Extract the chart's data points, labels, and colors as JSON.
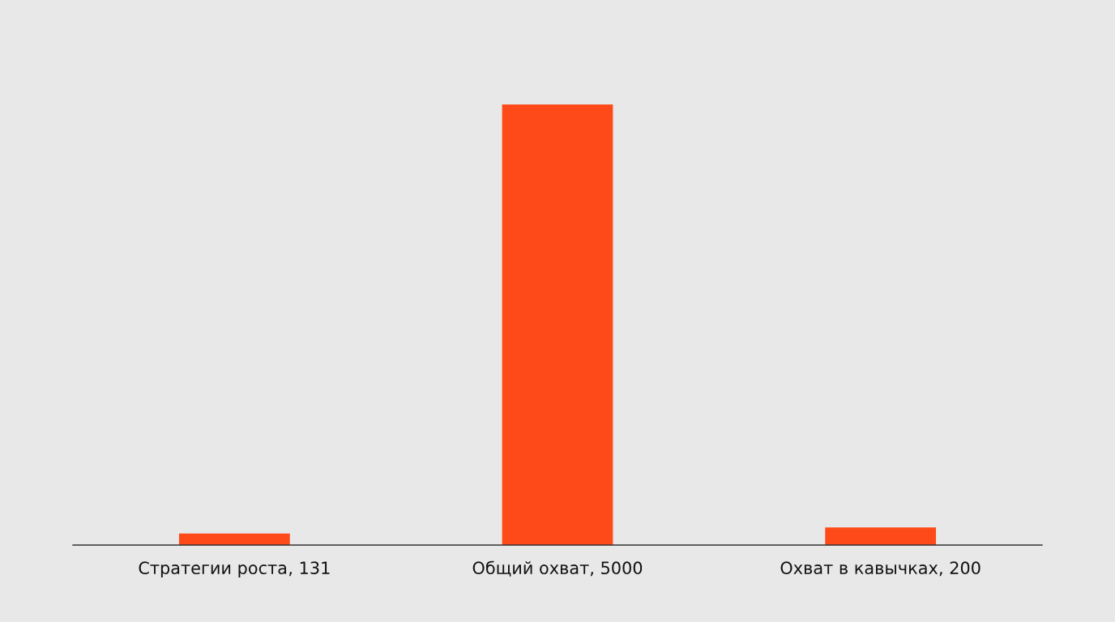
{
  "chart_data": {
    "type": "bar",
    "categories": [
      "Стратегии роста",
      "Общий охват",
      "Охват в кавычках"
    ],
    "values": [
      131,
      5000,
      200
    ],
    "value_labels": [
      ", 131",
      ", 5000",
      ", 200"
    ],
    "color": "#fe4a19",
    "legend": false
  }
}
